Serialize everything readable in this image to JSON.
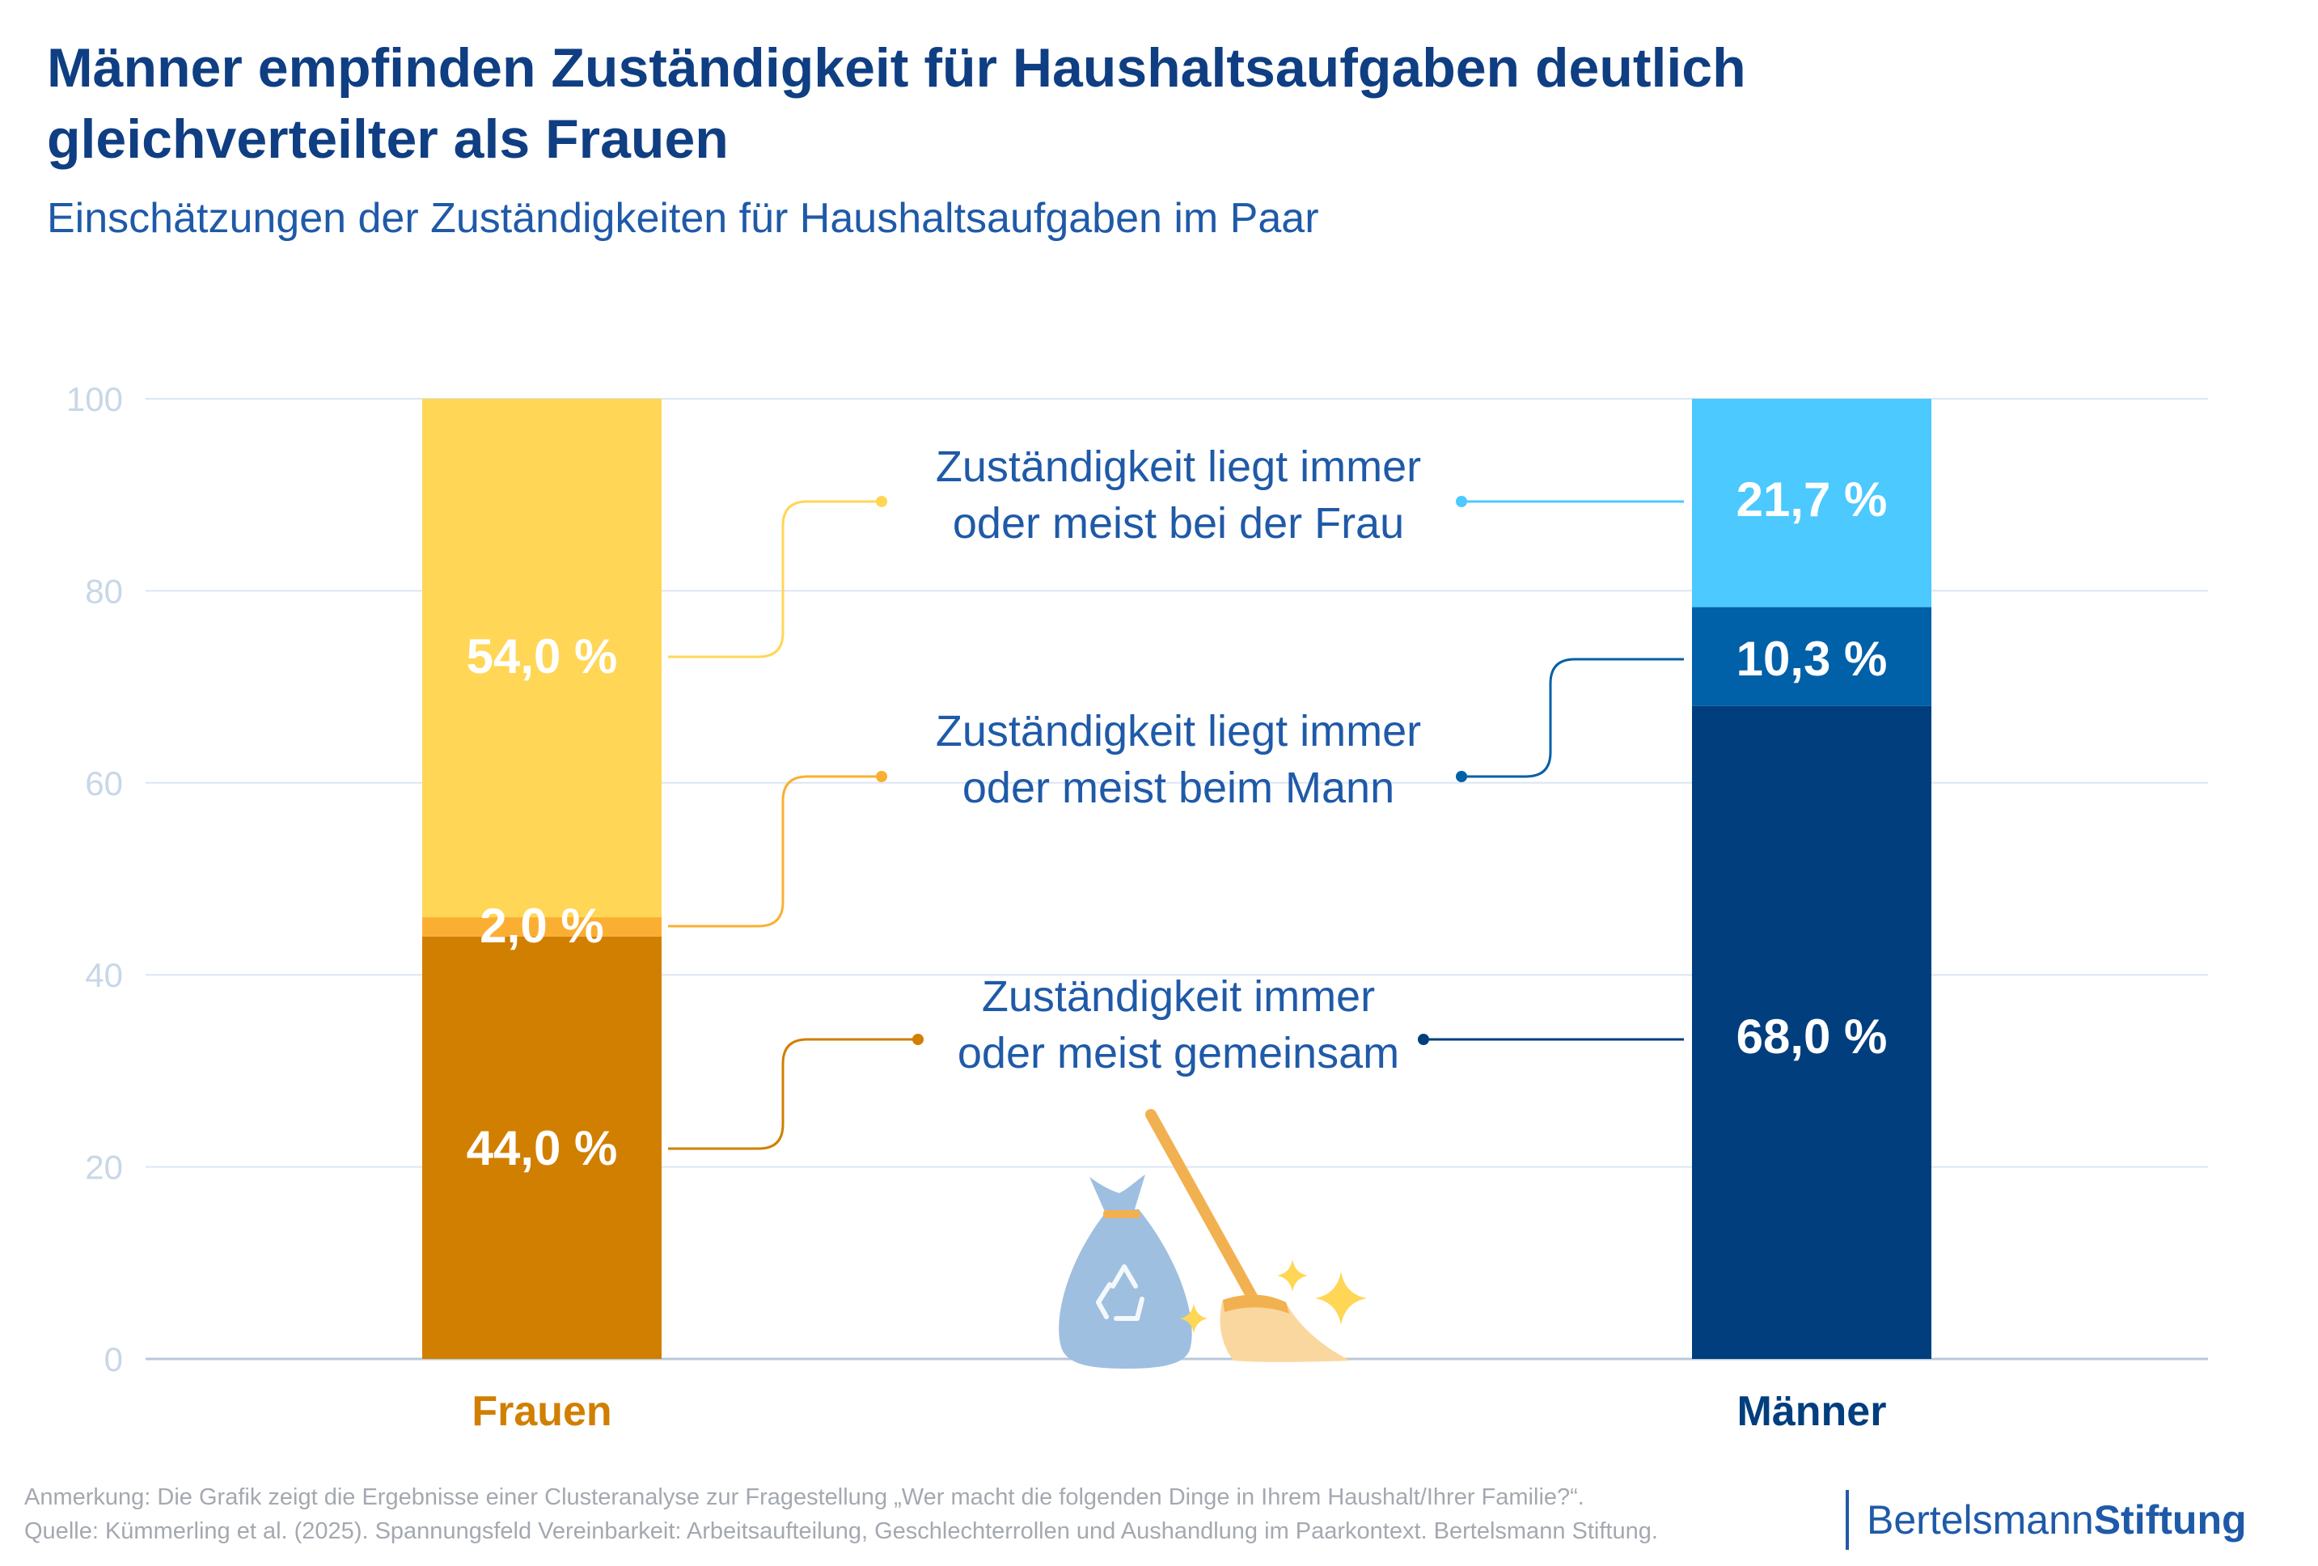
{
  "title": "Männer empfinden Zuständigkeit für Haushaltsaufgaben deutlich gleichverteilter als Frauen",
  "subtitle": "Einschätzungen der Zuständigkeiten für Haushaltsaufgaben im Paar",
  "chart_data": {
    "type": "bar",
    "stacked": true,
    "categories": [
      "Frauen",
      "Männer"
    ],
    "ylim": [
      0,
      100
    ],
    "yticks": [
      0,
      20,
      40,
      60,
      80,
      100
    ],
    "grid": true,
    "series": [
      {
        "key": "gemeinsam",
        "name": "Zuständigkeit immer oder meist gemeinsam",
        "values": [
          44.0,
          68.0
        ],
        "labels": [
          "44,0 %",
          "68,0 %"
        ],
        "colors": [
          "#d17f00",
          "#003e7e"
        ]
      },
      {
        "key": "mann",
        "name": "Zuständigkeit liegt immer oder meist beim Mann",
        "values": [
          2.0,
          10.3
        ],
        "labels": [
          "2,0 %",
          "10,3 %"
        ],
        "colors": [
          "#fbaf32",
          "#0060a8"
        ]
      },
      {
        "key": "frau",
        "name": "Zuständigkeit liegt immer oder meist bei der Frau",
        "values": [
          54.0,
          21.7
        ],
        "labels": [
          "54,0 %",
          "21,7 %"
        ],
        "colors": [
          "#ffd655",
          "#4cc9fe"
        ]
      }
    ],
    "legend_labels": [
      {
        "key": "frau",
        "line1": "Zuständigkeit liegt immer",
        "line2": "oder meist bei der Frau"
      },
      {
        "key": "mann",
        "line1": "Zuständigkeit liegt immer",
        "line2": "oder meist beim Mann"
      },
      {
        "key": "gemeinsam",
        "line1": "Zuständigkeit immer",
        "line2": "oder meist gemeinsam"
      }
    ],
    "category_colors": [
      "#d17f00",
      "#003e7e"
    ]
  },
  "colors": {
    "title": "#0f3e82",
    "label_text": "#1f5aa8",
    "axis_tick": "#c8d7e8",
    "grid": "#dce6f1"
  },
  "icons": [
    "recycling-bag-icon",
    "broom-icon",
    "sparkle-icon"
  ],
  "footnote": {
    "line1": "Anmerkung: Die Grafik zeigt die Ergebnisse einer Clusteranalyse zur Fragestellung „Wer macht die folgenden Dinge in Ihrem Haushalt/Ihrer Familie?“.",
    "line2": "Quelle: Kümmerling et al. (2025). Spannungsfeld Vereinbarkeit: Arbeitsaufteilung, Geschlechterrollen und Aushandlung im Paarkontext. Bertelsmann Stiftung."
  },
  "brand": {
    "part1": "Bertelsmann",
    "part2": "Stiftung"
  }
}
